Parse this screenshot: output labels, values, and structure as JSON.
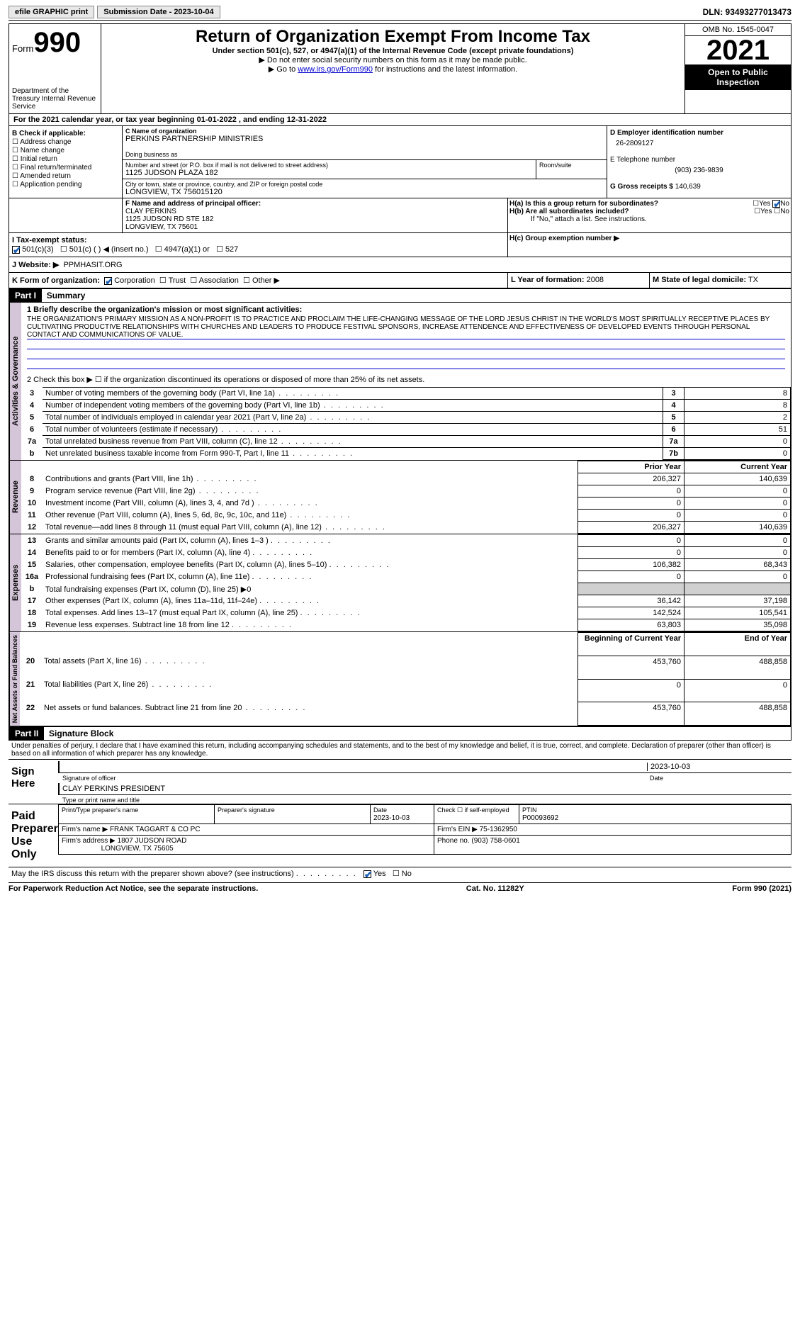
{
  "topbar": {
    "efile_label": "efile GRAPHIC print",
    "submission_label": "Submission Date - 2023-10-04",
    "dln_label": "DLN: 93493277013473"
  },
  "header": {
    "form_label": "Form",
    "form_number": "990",
    "dept": "Department of the Treasury Internal Revenue Service",
    "title": "Return of Organization Exempt From Income Tax",
    "subtitle": "Under section 501(c), 527, or 4947(a)(1) of the Internal Revenue Code (except private foundations)",
    "note1": "▶ Do not enter social security numbers on this form as it may be made public.",
    "note2_pre": "▶ Go to ",
    "note2_link": "www.irs.gov/Form990",
    "note2_post": " for instructions and the latest information.",
    "omb": "OMB No. 1545-0047",
    "year": "2021",
    "open_public": "Open to Public Inspection"
  },
  "line_a": "For the 2021 calendar year, or tax year beginning 01-01-2022    , and ending 12-31-2022",
  "box_b": {
    "label": "B Check if applicable:",
    "items": [
      "Address change",
      "Name change",
      "Initial return",
      "Final return/terminated",
      "Amended return",
      "Application pending"
    ]
  },
  "box_c": {
    "name_label": "C Name of organization",
    "name": "PERKINS PARTNERSHIP MINISTRIES",
    "dba_label": "Doing business as",
    "street_label": "Number and street (or P.O. box if mail is not delivered to street address)",
    "street": "1125 JUDSON PLAZA 182",
    "room_label": "Room/suite",
    "city_label": "City or town, state or province, country, and ZIP or foreign postal code",
    "city": "LONGVIEW, TX   756015120"
  },
  "box_d": {
    "label": "D Employer identification number",
    "value": "26-2809127"
  },
  "box_e": {
    "label": "E Telephone number",
    "value": "(903) 236-9839"
  },
  "box_g": {
    "label": "G Gross receipts $",
    "value": "140,639"
  },
  "box_f": {
    "label": "F  Name and address of principal officer:",
    "name": "CLAY PERKINS",
    "addr1": "1125 JUDSON RD STE 182",
    "addr2": "LONGVIEW, TX  75601"
  },
  "box_h": {
    "ha_label": "H(a)  Is this a group return for subordinates?",
    "hb_label": "H(b)  Are all subordinates included?",
    "hb_note": "If \"No,\" attach a list. See instructions.",
    "hc_label": "H(c)  Group exemption number ▶",
    "yes": "Yes",
    "no": "No"
  },
  "box_i": {
    "label": "I   Tax-exempt status:",
    "opts": [
      "501(c)(3)",
      "501(c) (  ) ◀ (insert no.)",
      "4947(a)(1) or",
      "527"
    ]
  },
  "box_j": {
    "label": "J   Website: ▶",
    "value": "PPMHASIT.ORG"
  },
  "box_k": {
    "label": "K Form of organization:",
    "opts": [
      "Corporation",
      "Trust",
      "Association",
      "Other ▶"
    ]
  },
  "box_l": {
    "label": "L Year of formation:",
    "value": "2008"
  },
  "box_m": {
    "label": "M State of legal domicile:",
    "value": "TX"
  },
  "part1": {
    "label": "Part I",
    "title": "Summary",
    "line1_label": "1  Briefly describe the organization's mission or most significant activities:",
    "mission": "THE ORGANIZATION'S PRIMARY MISSION AS A NON-PROFIT IS TO PRACTICE AND PROCLAIM THE LIFE-CHANGING MESSAGE OF THE LORD JESUS CHRIST IN THE WORLD'S MOST SPIRITUALLY RECEPTIVE PLACES BY CULTIVATING PRODUCTIVE RELATIONSHIPS WITH CHURCHES AND LEADERS TO PRODUCE FESTIVAL SPONSORS, INCREASE ATTENDENCE AND EFFECTIVENESS OF DEVELOPED EVENTS THROUGH PERSONAL CONTACT AND COMMUNICATIONS OF VALUE.",
    "line2": "2    Check this box ▶ ☐  if the organization discontinued its operations or disposed of more than 25% of its net assets.",
    "rows_gov": [
      {
        "n": "3",
        "label": "Number of voting members of the governing body (Part VI, line 1a)",
        "box": "3",
        "val": "8"
      },
      {
        "n": "4",
        "label": "Number of independent voting members of the governing body (Part VI, line 1b)",
        "box": "4",
        "val": "8"
      },
      {
        "n": "5",
        "label": "Total number of individuals employed in calendar year 2021 (Part V, line 2a)",
        "box": "5",
        "val": "2"
      },
      {
        "n": "6",
        "label": "Total number of volunteers (estimate if necessary)",
        "box": "6",
        "val": "51"
      },
      {
        "n": "7a",
        "label": "Total unrelated business revenue from Part VIII, column (C), line 12",
        "box": "7a",
        "val": "0"
      },
      {
        "n": "b",
        "label": "Net unrelated business taxable income from Form 990-T, Part I, line 11",
        "box": "7b",
        "val": "0"
      }
    ],
    "col_headers": {
      "prior": "Prior Year",
      "current": "Current Year",
      "begin": "Beginning of Current Year",
      "end": "End of Year"
    },
    "rows_rev": [
      {
        "n": "8",
        "label": "Contributions and grants (Part VIII, line 1h)",
        "p": "206,327",
        "c": "140,639"
      },
      {
        "n": "9",
        "label": "Program service revenue (Part VIII, line 2g)",
        "p": "0",
        "c": "0"
      },
      {
        "n": "10",
        "label": "Investment income (Part VIII, column (A), lines 3, 4, and 7d )",
        "p": "0",
        "c": "0"
      },
      {
        "n": "11",
        "label": "Other revenue (Part VIII, column (A), lines 5, 6d, 8c, 9c, 10c, and 11e)",
        "p": "0",
        "c": "0"
      },
      {
        "n": "12",
        "label": "Total revenue—add lines 8 through 11 (must equal Part VIII, column (A), line 12)",
        "p": "206,327",
        "c": "140,639"
      }
    ],
    "rows_exp": [
      {
        "n": "13",
        "label": "Grants and similar amounts paid (Part IX, column (A), lines 1–3 )",
        "p": "0",
        "c": "0"
      },
      {
        "n": "14",
        "label": "Benefits paid to or for members (Part IX, column (A), line 4)",
        "p": "0",
        "c": "0"
      },
      {
        "n": "15",
        "label": "Salaries, other compensation, employee benefits (Part IX, column (A), lines 5–10)",
        "p": "106,382",
        "c": "68,343"
      },
      {
        "n": "16a",
        "label": "Professional fundraising fees (Part IX, column (A), line 11e)",
        "p": "0",
        "c": "0"
      },
      {
        "n": "b",
        "label": "Total fundraising expenses (Part IX, column (D), line 25) ▶0",
        "p": "",
        "c": "",
        "shaded": true
      },
      {
        "n": "17",
        "label": "Other expenses (Part IX, column (A), lines 11a–11d, 11f–24e)",
        "p": "36,142",
        "c": "37,198"
      },
      {
        "n": "18",
        "label": "Total expenses. Add lines 13–17 (must equal Part IX, column (A), line 25)",
        "p": "142,524",
        "c": "105,541"
      },
      {
        "n": "19",
        "label": "Revenue less expenses. Subtract line 18 from line 12",
        "p": "63,803",
        "c": "35,098"
      }
    ],
    "rows_net": [
      {
        "n": "20",
        "label": "Total assets (Part X, line 16)",
        "p": "453,760",
        "c": "488,858"
      },
      {
        "n": "21",
        "label": "Total liabilities (Part X, line 26)",
        "p": "0",
        "c": "0"
      },
      {
        "n": "22",
        "label": "Net assets or fund balances. Subtract line 21 from line 20",
        "p": "453,760",
        "c": "488,858"
      }
    ],
    "vert_gov": "Activities & Governance",
    "vert_rev": "Revenue",
    "vert_exp": "Expenses",
    "vert_net": "Net Assets or Fund Balances"
  },
  "part2": {
    "label": "Part II",
    "title": "Signature Block",
    "decl": "Under penalties of perjury, I declare that I have examined this return, including accompanying schedules and statements, and to the best of my knowledge and belief, it is true, correct, and complete. Declaration of preparer (other than officer) is based on all information of which preparer has any knowledge.",
    "sign_here": "Sign Here",
    "sig_officer": "Signature of officer",
    "sig_date": "2023-10-03",
    "date_label": "Date",
    "officer_name": "CLAY PERKINS  PRESIDENT",
    "type_label": "Type or print name and title",
    "paid_label": "Paid Preparer Use Only",
    "prep_name_label": "Print/Type preparer's name",
    "prep_sig_label": "Preparer's signature",
    "prep_date": "2023-10-03",
    "check_if": "Check ☐ if self-employed",
    "ptin_label": "PTIN",
    "ptin": "P00093692",
    "firm_name_label": "Firm's name      ▶",
    "firm_name": "FRANK TAGGART & CO PC",
    "firm_ein_label": "Firm's EIN ▶",
    "firm_ein": "75-1362950",
    "firm_addr_label": "Firm's address ▶",
    "firm_addr": "1807 JUDSON ROAD",
    "firm_city": "LONGVIEW, TX  75605",
    "phone_label": "Phone no.",
    "phone": "(903) 758-0601",
    "may_irs": "May the IRS discuss this return with the preparer shown above? (see instructions)",
    "yes": "Yes",
    "no": "No"
  },
  "footer": {
    "left": "For Paperwork Reduction Act Notice, see the separate instructions.",
    "mid": "Cat. No. 11282Y",
    "right": "Form 990 (2021)"
  }
}
